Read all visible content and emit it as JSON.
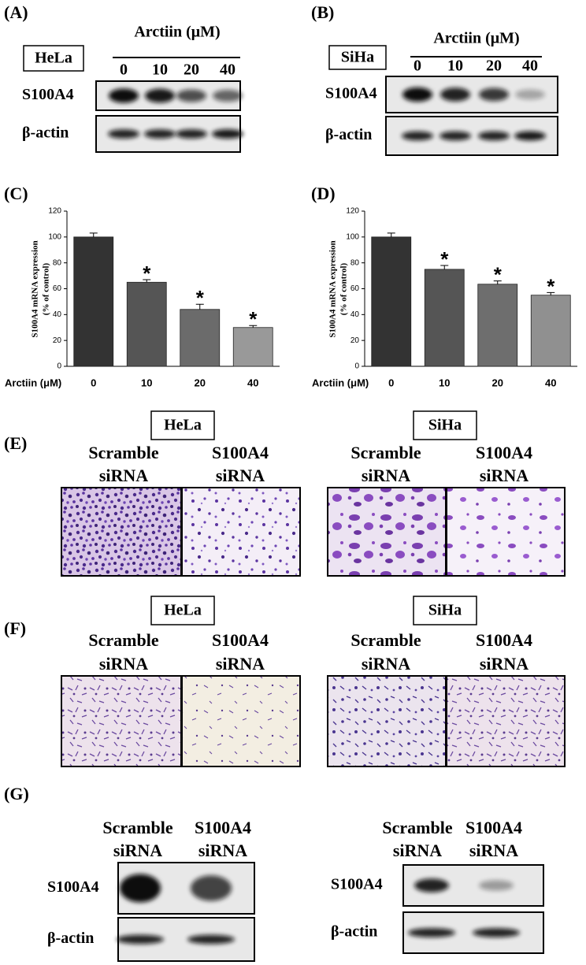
{
  "panels": {
    "A": {
      "label": "(A)",
      "cell_line": "HeLa",
      "treatment": "Arctiin (μM)",
      "lanes": [
        "0",
        "10",
        "20",
        "40"
      ],
      "blots": [
        "S100A4",
        "β-actin"
      ]
    },
    "B": {
      "label": "(B)",
      "cell_line": "SiHa",
      "treatment": "Arctiin (μM)",
      "lanes": [
        "0",
        "10",
        "20",
        "40"
      ],
      "blots": [
        "S100A4",
        "β-actin"
      ]
    },
    "E": {
      "label": "(E)",
      "groups": [
        {
          "cell_line": "HeLa",
          "conditions": [
            [
              "Scramble",
              "siRNA"
            ],
            [
              "S100A4",
              "siRNA"
            ]
          ]
        },
        {
          "cell_line": "SiHa",
          "conditions": [
            [
              "Scramble",
              "siRNA"
            ],
            [
              "S100A4",
              "siRNA"
            ]
          ]
        }
      ]
    },
    "F": {
      "label": "(F)",
      "groups": [
        {
          "cell_line": "HeLa",
          "conditions": [
            [
              "Scramble",
              "siRNA"
            ],
            [
              "S100A4",
              "siRNA"
            ]
          ]
        },
        {
          "cell_line": "SiHa",
          "conditions": [
            [
              "Scramble",
              "siRNA"
            ],
            [
              "S100A4",
              "siRNA"
            ]
          ]
        }
      ]
    },
    "G": {
      "label": "(G)",
      "groups": [
        {
          "conditions": [
            [
              "Scramble",
              "siRNA"
            ],
            [
              "S100A4",
              "siRNA"
            ]
          ],
          "blots": [
            "S100A4",
            "β-actin"
          ]
        },
        {
          "conditions": [
            [
              "Scramble",
              "siRNA"
            ],
            [
              "S100A4",
              "siRNA"
            ]
          ],
          "blots": [
            "S100A4",
            "β-actin"
          ]
        }
      ]
    }
  },
  "chart_data": [
    {
      "type": "bar",
      "panel_label": "(C)",
      "ylabel": [
        "S100A4 mRNA expression",
        "(% of control)"
      ],
      "xlabel": "Arctiin (μM)",
      "categories": [
        "0",
        "10",
        "20",
        "40"
      ],
      "values": [
        100,
        65,
        44,
        30
      ],
      "errors": [
        3,
        2,
        4,
        1.5
      ],
      "colors": [
        "#333333",
        "#555555",
        "#6b6b6b",
        "#999999"
      ],
      "annotations": [
        {
          "x": "10",
          "text": "*"
        },
        {
          "x": "20",
          "text": "*"
        },
        {
          "x": "40",
          "text": "*"
        }
      ],
      "ylim": [
        0,
        120
      ],
      "yticks": [
        0,
        20,
        40,
        60,
        80,
        100,
        120
      ]
    },
    {
      "type": "bar",
      "panel_label": "(D)",
      "ylabel": [
        "S100A4 mRNA expression",
        "(% of control)"
      ],
      "xlabel": "Arctiin (μM)",
      "categories": [
        "0",
        "10",
        "20",
        "40"
      ],
      "values": [
        100,
        75,
        63.5,
        55
      ],
      "errors": [
        3,
        3,
        2.5,
        2
      ],
      "colors": [
        "#333333",
        "#555555",
        "#6e6e6e",
        "#909090"
      ],
      "annotations": [
        {
          "x": "10",
          "text": "*"
        },
        {
          "x": "20",
          "text": "*"
        },
        {
          "x": "40",
          "text": "*"
        }
      ],
      "ylim": [
        0,
        120
      ],
      "yticks": [
        0,
        20,
        40,
        60,
        80,
        100,
        120
      ]
    }
  ]
}
